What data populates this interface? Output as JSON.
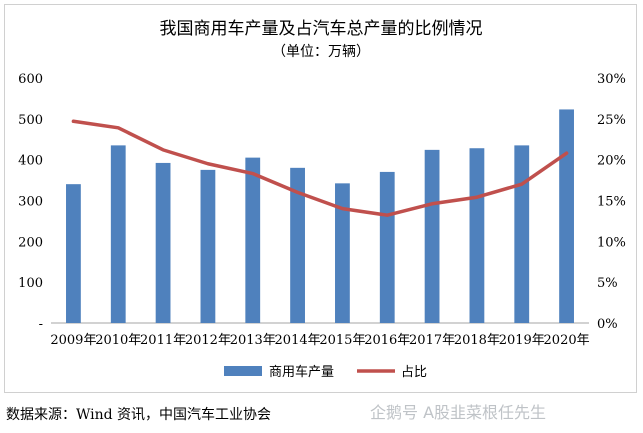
{
  "chart_data": {
    "type": "bar+line",
    "title": "我国商用车产量及占汽车总产量的比例情况",
    "subtitle": "（单位：万辆）",
    "categories": [
      "2009年",
      "2010年",
      "2011年",
      "2012年",
      "2013年",
      "2014年",
      "2015年",
      "2016年",
      "2017年",
      "2018年",
      "2019年",
      "2020年"
    ],
    "series": [
      {
        "name": "商用车产量",
        "kind": "bar",
        "axis": "left",
        "color": "#4f81bd",
        "values": [
          340,
          435,
          392,
          375,
          405,
          380,
          342,
          370,
          424,
          428,
          435,
          523
        ]
      },
      {
        "name": "占比",
        "kind": "line",
        "axis": "right",
        "color": "#c0504d",
        "values": [
          0.247,
          0.239,
          0.212,
          0.195,
          0.183,
          0.16,
          0.14,
          0.132,
          0.146,
          0.154,
          0.17,
          0.208
        ]
      }
    ],
    "left_axis": {
      "min": 0,
      "max": 600,
      "ticks": [
        0,
        100,
        200,
        300,
        400,
        500,
        600
      ],
      "tick_labels": [
        "-",
        "100",
        "200",
        "300",
        "400",
        "500",
        "600"
      ]
    },
    "right_axis": {
      "min": 0,
      "max": 0.3,
      "ticks": [
        0,
        0.05,
        0.1,
        0.15,
        0.2,
        0.25,
        0.3
      ],
      "tick_labels": [
        "0%",
        "5%",
        "10%",
        "15%",
        "20%",
        "25%",
        "30%"
      ]
    },
    "legend": {
      "position": "bottom",
      "items": [
        "商用车产量",
        "占比"
      ]
    },
    "grid": false
  },
  "footer": {
    "source": "数据来源：Wind 资讯，中国汽车工业协会",
    "watermark": "企鹅号 A股韭菜根任先生"
  }
}
